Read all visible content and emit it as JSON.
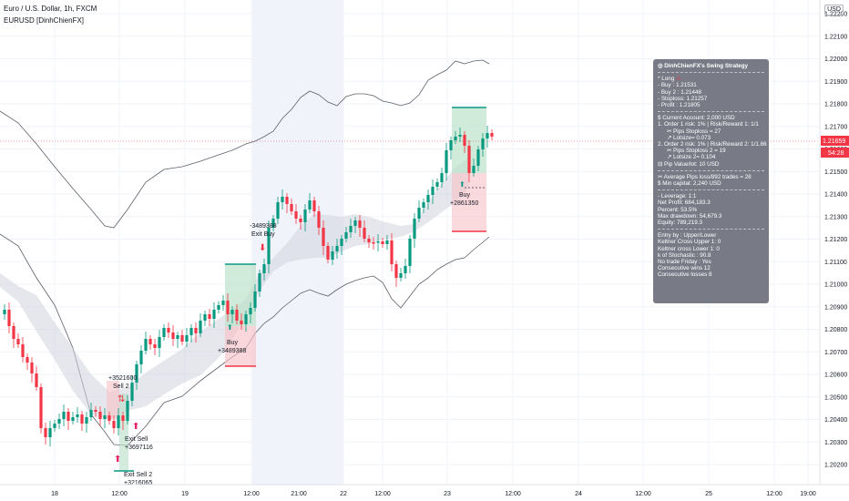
{
  "header": {
    "symbol_title": "Euro / U.S. Dollar, 1h, FXCM",
    "indicator_title": "EURUSD [DinhChienFX]",
    "currency": "USD"
  },
  "price_axis": {
    "ticks": [
      "1.22200",
      "1.22100",
      "1.22000",
      "1.21900",
      "1.21800",
      "1.21700",
      "1.21600",
      "1.21500",
      "1.21400",
      "1.21300",
      "1.21200",
      "1.21100",
      "1.21000",
      "1.20900",
      "1.20800",
      "1.20700",
      "1.20600",
      "1.20500",
      "1.20400",
      "1.20300",
      "1.20200"
    ],
    "current_price": "1.21659",
    "countdown": "54:28",
    "colors": {
      "current": "#f23645",
      "up": "#089981",
      "down": "#f23645"
    }
  },
  "time_axis": {
    "ticks": [
      "18",
      "12:00",
      "19",
      "12:00",
      "21:00",
      "22",
      "12:00",
      "23",
      "12:00",
      "24",
      "12:00",
      "25",
      "12:00",
      "19:00"
    ]
  },
  "trade_labels": {
    "exit_buy_value": "-3489388",
    "exit_buy_text": "Exit Buy",
    "buy1_text": "Buy",
    "buy1_value": "+3489388",
    "buy2_text": "Buy",
    "buy2_value": "+2861350",
    "sell_value": "+3521600",
    "sell_text": "Sell",
    "sell2_text": "Sell 2",
    "exit_sell_text": "Exit Sell",
    "exit_sell_value": "+3697116",
    "exit_sell2_text": "Exit Sell 2",
    "exit_sell2_value": "+3216065"
  },
  "info_panel": {
    "title": "DinhChienFX's Swing Strategy",
    "long_heading": "* Long",
    "buy": "- Buy   : 1.21531",
    "buy2": "- Buy 2  : 1.21448",
    "stoploss": "- Stoploss: 1.21257",
    "profit": "- Profit  : 1.21805",
    "current_account": "$ Current Account: 2,000 USD",
    "order1": "1. Order 1 risk: 1% | Risk/Reward 1: 1/1",
    "order1_pips": "✂ Pips Stoploss = 27",
    "order1_lot": "↗ Lotsize= 0.073",
    "order2": "2. Order 2 risk: 1% | Risk/Reward 2: 1/1.86",
    "order2_pips": "✂ Pips Stoploss 2 = 19",
    "order2_lot": "↗ Lotsize 2= 0.104",
    "pip_value": "⊟ Pip Value/lot: 10 USD",
    "avg_pips": "✂ Average Pips loss/892 trades = 28",
    "min_capital": "$ Min capital: 2,240 USD",
    "leverage": "- Leverage: 1:1",
    "net_profit": "Net Profit: 684,183.3",
    "percent": "Percent: 53.5%",
    "max_dd": "Max drawdown: 54,679.3",
    "equity": "Equity: 789,219.3",
    "entry_by": "Entry by : Upper/Lower",
    "keltner_upper": "Keltner Cross Upper 1: 0",
    "keltner_lower": "Keltner cross Lower 1: 0",
    "stoch": "k of Stochastic : 90.8",
    "no_trade_friday": "No trade Friday : Yes",
    "cons_wins": "Consecutive wins 12",
    "cons_losses": "Consecutive losses 8"
  }
}
